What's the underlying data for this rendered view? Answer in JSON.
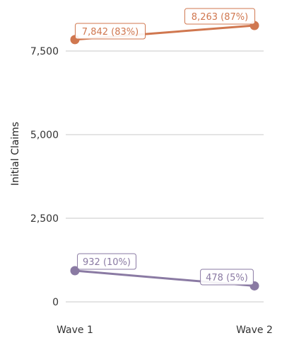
{
  "chart_data": {
    "type": "line",
    "title": "",
    "xlabel": "",
    "ylabel": "Initial Claims",
    "categories": [
      "Wave 1",
      "Wave 2"
    ],
    "ylim": [
      0,
      8300
    ],
    "yticks": [
      0,
      2500,
      5000,
      7500
    ],
    "ytick_labels": [
      "0",
      "2,500",
      "5,000",
      "7,500"
    ],
    "grid": true,
    "legend": "none",
    "series": [
      {
        "values": [
          7842,
          8263
        ],
        "data_labels": [
          "7,842 (83%)",
          "8,263 (87%)"
        ],
        "color": "#d0774f"
      },
      {
        "values": [
          932,
          478
        ],
        "data_labels": [
          "932 (10%)",
          "478 (5%)"
        ],
        "color": "#8a7aa3"
      }
    ]
  }
}
